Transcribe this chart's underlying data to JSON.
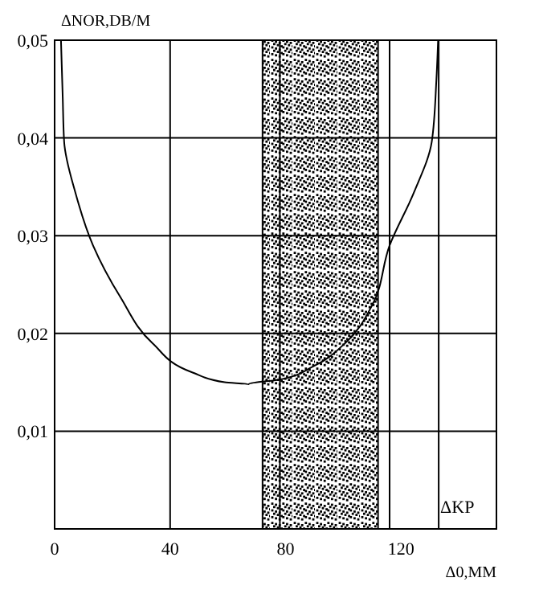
{
  "chart_data": {
    "type": "line",
    "ylabel": "ΔNOR,DB/M",
    "xlabel": "Δ0,MM",
    "xlim": [
      0,
      153
    ],
    "ylim": [
      0,
      0.05
    ],
    "xticks": [
      0,
      40,
      80,
      120
    ],
    "yticks": [
      {
        "value": 0.01,
        "label": "0,01"
      },
      {
        "value": 0.02,
        "label": "0,02"
      },
      {
        "value": 0.03,
        "label": "0,03"
      },
      {
        "value": 0.04,
        "label": "0,04"
      },
      {
        "value": 0.05,
        "label": "0,05"
      }
    ],
    "grid": "y",
    "series": [
      {
        "color": "#000000",
        "x": [
          2.2,
          2.8,
          3.3,
          7.2,
          13.3,
          22.8,
          33.9,
          47.8,
          58.9,
          67.2,
          78.3,
          89.4,
          100.6,
          110,
          116,
          124.4,
          130.6,
          132.2,
          132.8
        ],
        "values": [
          0.05,
          0.0442,
          0.0396,
          0.0344,
          0.029,
          0.0237,
          0.019,
          0.016,
          0.015,
          0.0148,
          0.0153,
          0.0166,
          0.019,
          0.0229,
          0.029,
          0.0344,
          0.0396,
          0.0459,
          0.05
        ]
      }
    ],
    "ref_lines": [
      {
        "axis": "x",
        "value": 40
      },
      {
        "axis": "x",
        "value": 78
      },
      {
        "axis": "x",
        "value": 116
      },
      {
        "axis": "x",
        "value": 133,
        "label": "ΔKP"
      }
    ],
    "bands": [
      {
        "axis": "x",
        "from": 72,
        "to": 112,
        "color": "#000000"
      }
    ],
    "line_style": "solid"
  }
}
